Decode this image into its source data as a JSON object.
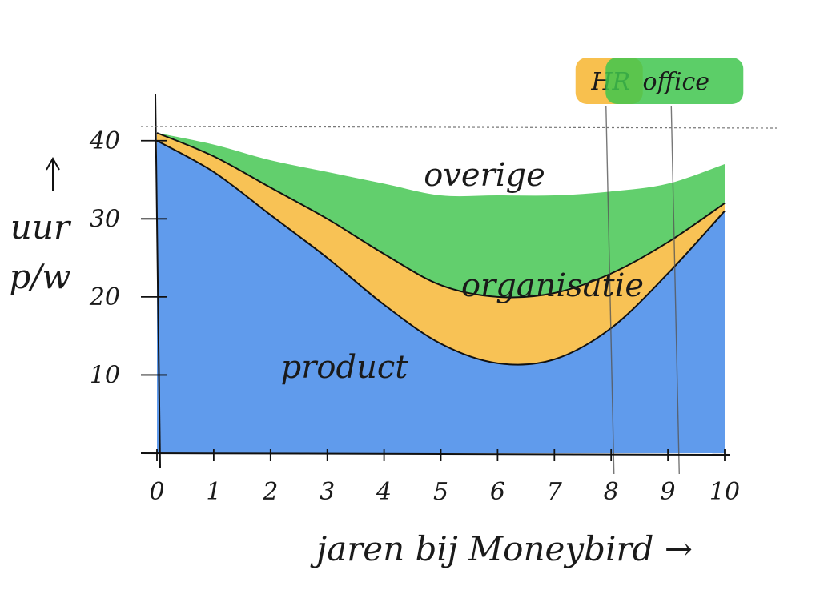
{
  "chart_data": {
    "type": "area",
    "stacked": true,
    "x": [
      0,
      1,
      2,
      3,
      4,
      5,
      6,
      7,
      8,
      9,
      10
    ],
    "xticks": [
      "0",
      "1",
      "2",
      "3",
      "4",
      "5",
      "6",
      "7",
      "8",
      "9",
      "10"
    ],
    "yticks": [
      "10",
      "20",
      "30",
      "40"
    ],
    "xlabel": "jaren bij Moneybird →",
    "ylabel": "uur p/w",
    "ylim": [
      0,
      41
    ],
    "xlim": [
      0,
      10
    ],
    "grid": false,
    "legend": "none",
    "series": [
      {
        "name": "product",
        "color": "#3d85e8",
        "values": [
          40,
          36,
          30.5,
          25,
          19,
          14,
          11.5,
          12,
          16,
          23,
          31
        ]
      },
      {
        "name": "organisatie",
        "color": "#f7b52f",
        "values": [
          1,
          2,
          3.5,
          5,
          6.5,
          7.5,
          8.5,
          8.5,
          7,
          4,
          1
        ]
      },
      {
        "name": "overige",
        "color": "#3fc54d",
        "values": [
          0,
          1.5,
          3.5,
          6,
          9,
          11.5,
          13,
          12.5,
          10.5,
          7.5,
          5
        ]
      }
    ],
    "markers": [
      {
        "label": "HR",
        "x": 8.05,
        "color": "#f7b52f"
      },
      {
        "label": "office",
        "x": 9.2,
        "color": "#3fc54d"
      }
    ]
  }
}
